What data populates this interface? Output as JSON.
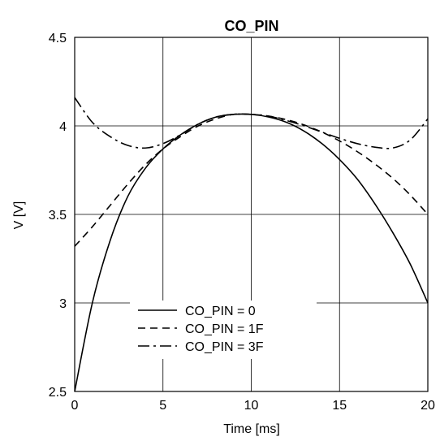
{
  "chart_data": {
    "type": "line",
    "title": "CO_PIN",
    "xlabel": "Time [ms]",
    "ylabel": "V [V]",
    "xlim": [
      0,
      20
    ],
    "ylim": [
      2.5,
      4.5
    ],
    "xticks": [
      0,
      5,
      10,
      15,
      20
    ],
    "xtick_labels": [
      "0",
      "5",
      "10",
      "15",
      "20"
    ],
    "yticks": [
      2.5,
      3,
      3.5,
      4,
      4.5
    ],
    "ytick_labels": [
      "2.5",
      "3",
      "3.5",
      "4",
      "4.5"
    ],
    "grid": true,
    "legend_position": "lower-left",
    "series": [
      {
        "name": "CO_PIN = 0",
        "style": "solid",
        "x": [
          0,
          1,
          2,
          3,
          4,
          5,
          6,
          7,
          8,
          9,
          10,
          11,
          12,
          13,
          14,
          15,
          16,
          17,
          18,
          19,
          20
        ],
        "y": [
          2.5,
          3.0,
          3.35,
          3.6,
          3.76,
          3.87,
          3.95,
          4.01,
          4.05,
          4.065,
          4.065,
          4.05,
          4.02,
          3.97,
          3.9,
          3.81,
          3.7,
          3.56,
          3.4,
          3.22,
          3.0
        ]
      },
      {
        "name": "CO_PIN = 1F",
        "style": "dashed",
        "x": [
          0,
          1,
          2,
          3,
          4,
          5,
          6,
          7,
          8,
          9,
          10,
          11,
          12,
          13,
          14,
          15,
          16,
          17,
          18,
          19,
          20
        ],
        "y": [
          3.32,
          3.43,
          3.55,
          3.67,
          3.78,
          3.87,
          3.94,
          4.0,
          4.04,
          4.065,
          4.065,
          4.055,
          4.035,
          4.005,
          3.965,
          3.915,
          3.855,
          3.785,
          3.705,
          3.61,
          3.5
        ]
      },
      {
        "name": "CO_PIN = 3F",
        "style": "dashdot",
        "x": [
          0,
          1,
          2,
          3,
          4,
          5,
          6,
          7,
          8,
          9,
          10,
          11,
          12,
          13,
          14,
          15,
          16,
          17,
          18,
          19,
          20
        ],
        "y": [
          4.16,
          4.02,
          3.94,
          3.89,
          3.875,
          3.9,
          3.95,
          4.01,
          4.05,
          4.065,
          4.065,
          4.055,
          4.03,
          4.0,
          3.965,
          3.93,
          3.9,
          3.88,
          3.875,
          3.92,
          4.04
        ]
      }
    ]
  }
}
